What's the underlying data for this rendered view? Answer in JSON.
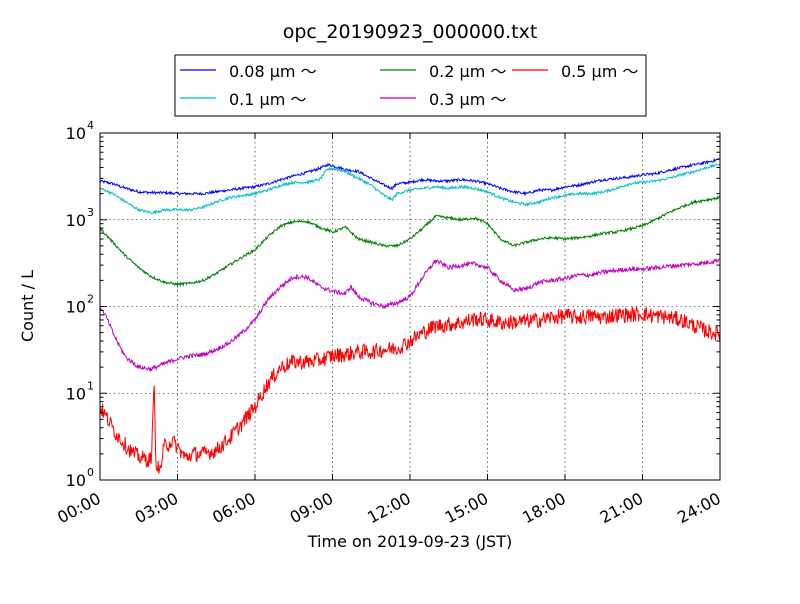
{
  "chart_data": {
    "type": "line",
    "title": "opc_20190923_000000.txt",
    "xlabel": "Time on 2019-09-23 (JST)",
    "ylabel": "Count / L",
    "x_unit": "hours",
    "xlim": [
      0,
      24
    ],
    "ylim": [
      1,
      10000
    ],
    "yscale": "log",
    "grid": true,
    "legend_placement": "top-center, above plot",
    "x_ticks": [
      {
        "value": 0,
        "label": "00:00"
      },
      {
        "value": 3,
        "label": "03:00"
      },
      {
        "value": 6,
        "label": "06:00"
      },
      {
        "value": 9,
        "label": "09:00"
      },
      {
        "value": 12,
        "label": "12:00"
      },
      {
        "value": 15,
        "label": "15:00"
      },
      {
        "value": 18,
        "label": "18:00"
      },
      {
        "value": 21,
        "label": "21:00"
      },
      {
        "value": 24,
        "label": "24:00"
      }
    ],
    "y_ticks": [
      {
        "value": 1,
        "base": "10",
        "exp": "0"
      },
      {
        "value": 10,
        "base": "10",
        "exp": "1"
      },
      {
        "value": 100,
        "base": "10",
        "exp": "2"
      },
      {
        "value": 1000,
        "base": "10",
        "exp": "3"
      },
      {
        "value": 10000,
        "base": "10",
        "exp": "4"
      }
    ],
    "series": [
      {
        "name": "0.08 μm ～",
        "color": "#0000ff",
        "points": [
          [
            0,
            2800
          ],
          [
            0.5,
            2600
          ],
          [
            1,
            2300
          ],
          [
            1.5,
            2100
          ],
          [
            2,
            2050
          ],
          [
            2.5,
            2050
          ],
          [
            3,
            2000
          ],
          [
            3.5,
            2000
          ],
          [
            4,
            2000
          ],
          [
            4.5,
            2100
          ],
          [
            5,
            2200
          ],
          [
            5.5,
            2300
          ],
          [
            6,
            2400
          ],
          [
            6.5,
            2600
          ],
          [
            7,
            2900
          ],
          [
            7.5,
            3200
          ],
          [
            8,
            3500
          ],
          [
            8.5,
            3900
          ],
          [
            8.8,
            4300
          ],
          [
            9,
            4200
          ],
          [
            9.5,
            3800
          ],
          [
            10,
            3600
          ],
          [
            10.5,
            3000
          ],
          [
            11,
            2500
          ],
          [
            11.3,
            2300
          ],
          [
            11.5,
            2600
          ],
          [
            12,
            2700
          ],
          [
            12.5,
            2900
          ],
          [
            13,
            2800
          ],
          [
            13.5,
            2800
          ],
          [
            14,
            2900
          ],
          [
            14.5,
            2800
          ],
          [
            15,
            2600
          ],
          [
            15.5,
            2300
          ],
          [
            16,
            2100
          ],
          [
            16.5,
            2000
          ],
          [
            17,
            2200
          ],
          [
            17.5,
            2200
          ],
          [
            18,
            2400
          ],
          [
            18.5,
            2500
          ],
          [
            19,
            2700
          ],
          [
            19.5,
            2900
          ],
          [
            20,
            3000
          ],
          [
            20.5,
            3100
          ],
          [
            21,
            3300
          ],
          [
            21.5,
            3400
          ],
          [
            22,
            3700
          ],
          [
            22.5,
            4000
          ],
          [
            23,
            4300
          ],
          [
            23.5,
            4600
          ],
          [
            24,
            5000
          ]
        ]
      },
      {
        "name": "0.1 μm ～",
        "color": "#00bfbf",
        "points": [
          [
            0,
            2300
          ],
          [
            0.5,
            2000
          ],
          [
            1,
            1600
          ],
          [
            1.5,
            1300
          ],
          [
            2,
            1200
          ],
          [
            2.5,
            1300
          ],
          [
            3,
            1300
          ],
          [
            3.5,
            1300
          ],
          [
            4,
            1400
          ],
          [
            4.5,
            1600
          ],
          [
            5,
            1800
          ],
          [
            5.5,
            1900
          ],
          [
            6,
            2000
          ],
          [
            6.5,
            2200
          ],
          [
            7,
            2500
          ],
          [
            7.5,
            2700
          ],
          [
            8,
            2700
          ],
          [
            8.5,
            2900
          ],
          [
            8.8,
            3800
          ],
          [
            9,
            3900
          ],
          [
            9.5,
            3600
          ],
          [
            10,
            3000
          ],
          [
            10.5,
            2500
          ],
          [
            11,
            1900
          ],
          [
            11.3,
            1700
          ],
          [
            11.5,
            2000
          ],
          [
            12,
            2200
          ],
          [
            12.5,
            2300
          ],
          [
            13,
            2400
          ],
          [
            13.5,
            2300
          ],
          [
            14,
            2400
          ],
          [
            14.5,
            2300
          ],
          [
            15,
            2100
          ],
          [
            15.5,
            1800
          ],
          [
            16,
            1600
          ],
          [
            16.5,
            1500
          ],
          [
            17,
            1600
          ],
          [
            17.5,
            1800
          ],
          [
            18,
            1900
          ],
          [
            18.5,
            2000
          ],
          [
            19,
            2000
          ],
          [
            19.5,
            2100
          ],
          [
            20,
            2300
          ],
          [
            20.5,
            2600
          ],
          [
            21,
            2700
          ],
          [
            21.5,
            2800
          ],
          [
            22,
            3000
          ],
          [
            22.5,
            3300
          ],
          [
            23,
            3600
          ],
          [
            23.5,
            4000
          ],
          [
            24,
            4400
          ]
        ]
      },
      {
        "name": "0.2 μm ～",
        "color": "#008000",
        "points": [
          [
            0,
            800
          ],
          [
            0.5,
            550
          ],
          [
            1,
            380
          ],
          [
            1.5,
            280
          ],
          [
            2,
            220
          ],
          [
            2.5,
            190
          ],
          [
            3,
            180
          ],
          [
            3.5,
            185
          ],
          [
            4,
            200
          ],
          [
            4.5,
            240
          ],
          [
            5,
            300
          ],
          [
            5.5,
            370
          ],
          [
            6,
            450
          ],
          [
            6.5,
            640
          ],
          [
            7,
            850
          ],
          [
            7.5,
            950
          ],
          [
            8,
            960
          ],
          [
            8.5,
            820
          ],
          [
            9,
            720
          ],
          [
            9.5,
            820
          ],
          [
            10,
            600
          ],
          [
            10.5,
            550
          ],
          [
            11,
            500
          ],
          [
            11.5,
            500
          ],
          [
            12,
            600
          ],
          [
            12.5,
            800
          ],
          [
            13,
            1100
          ],
          [
            13.5,
            1050
          ],
          [
            14,
            1000
          ],
          [
            14.5,
            1050
          ],
          [
            15,
            900
          ],
          [
            15.5,
            600
          ],
          [
            16,
            500
          ],
          [
            16.5,
            550
          ],
          [
            17,
            600
          ],
          [
            17.5,
            620
          ],
          [
            18,
            600
          ],
          [
            18.5,
            620
          ],
          [
            19,
            650
          ],
          [
            19.5,
            700
          ],
          [
            20,
            720
          ],
          [
            20.5,
            780
          ],
          [
            21,
            850
          ],
          [
            21.5,
            1000
          ],
          [
            22,
            1200
          ],
          [
            22.5,
            1400
          ],
          [
            23,
            1600
          ],
          [
            23.5,
            1700
          ],
          [
            24,
            1800
          ]
        ]
      },
      {
        "name": "0.3 μm ～",
        "color": "#bf00bf",
        "points": [
          [
            0,
            100
          ],
          [
            0.25,
            75
          ],
          [
            0.5,
            50
          ],
          [
            0.75,
            35
          ],
          [
            1,
            26
          ],
          [
            1.5,
            20
          ],
          [
            2,
            19
          ],
          [
            2.5,
            22
          ],
          [
            3,
            25
          ],
          [
            3.5,
            27
          ],
          [
            4,
            28
          ],
          [
            4.5,
            32
          ],
          [
            5,
            38
          ],
          [
            5.5,
            50
          ],
          [
            6,
            70
          ],
          [
            6.5,
            120
          ],
          [
            7,
            170
          ],
          [
            7.5,
            220
          ],
          [
            8,
            220
          ],
          [
            8.5,
            170
          ],
          [
            9,
            150
          ],
          [
            9.5,
            140
          ],
          [
            9.7,
            170
          ],
          [
            10,
            130
          ],
          [
            10.5,
            110
          ],
          [
            11,
            100
          ],
          [
            11.5,
            110
          ],
          [
            12,
            130
          ],
          [
            12.5,
            220
          ],
          [
            13,
            340
          ],
          [
            13.5,
            280
          ],
          [
            14,
            300
          ],
          [
            14.5,
            310
          ],
          [
            15,
            280
          ],
          [
            15.5,
            200
          ],
          [
            16,
            155
          ],
          [
            16.5,
            160
          ],
          [
            17,
            190
          ],
          [
            17.5,
            200
          ],
          [
            18,
            210
          ],
          [
            18.5,
            230
          ],
          [
            19,
            230
          ],
          [
            19.5,
            250
          ],
          [
            20,
            260
          ],
          [
            20.5,
            270
          ],
          [
            21,
            270
          ],
          [
            21.5,
            280
          ],
          [
            22,
            290
          ],
          [
            22.5,
            300
          ],
          [
            23,
            310
          ],
          [
            23.5,
            320
          ],
          [
            24,
            350
          ]
        ]
      },
      {
        "name": "0.5 μm ～",
        "color": "#ff0000",
        "points": [
          [
            0,
            7
          ],
          [
            0.3,
            5
          ],
          [
            0.6,
            3.5
          ],
          [
            1,
            2.5
          ],
          [
            1.3,
            2
          ],
          [
            1.6,
            1.8
          ],
          [
            1.9,
            1.7
          ],
          [
            2,
            1.9
          ],
          [
            2.1,
            15
          ],
          [
            2.15,
            1.8
          ],
          [
            2.3,
            1.2
          ],
          [
            2.5,
            2.5
          ],
          [
            2.8,
            2.8
          ],
          [
            3,
            2.4
          ],
          [
            3.3,
            1.8
          ],
          [
            3.6,
            2
          ],
          [
            4,
            2
          ],
          [
            4.5,
            2.2
          ],
          [
            5,
            3
          ],
          [
            5.5,
            4.5
          ],
          [
            6,
            7
          ],
          [
            6.5,
            13
          ],
          [
            7,
            20
          ],
          [
            7.5,
            23
          ],
          [
            8,
            23
          ],
          [
            8.5,
            24
          ],
          [
            9,
            27
          ],
          [
            9.5,
            28
          ],
          [
            10,
            30
          ],
          [
            10.5,
            30
          ],
          [
            11,
            32
          ],
          [
            11.5,
            33
          ],
          [
            12,
            40
          ],
          [
            12.5,
            50
          ],
          [
            13,
            60
          ],
          [
            13.5,
            62
          ],
          [
            14,
            65
          ],
          [
            14.5,
            72
          ],
          [
            15,
            70
          ],
          [
            15.5,
            65
          ],
          [
            16,
            66
          ],
          [
            16.5,
            68
          ],
          [
            17,
            70
          ],
          [
            17.5,
            75
          ],
          [
            18,
            78
          ],
          [
            18.5,
            75
          ],
          [
            19,
            78
          ],
          [
            19.5,
            75
          ],
          [
            20,
            80
          ],
          [
            20.5,
            80
          ],
          [
            21,
            82
          ],
          [
            21.5,
            78
          ],
          [
            22,
            75
          ],
          [
            22.5,
            70
          ],
          [
            23,
            60
          ],
          [
            23.5,
            52
          ],
          [
            24,
            48
          ]
        ]
      }
    ]
  }
}
